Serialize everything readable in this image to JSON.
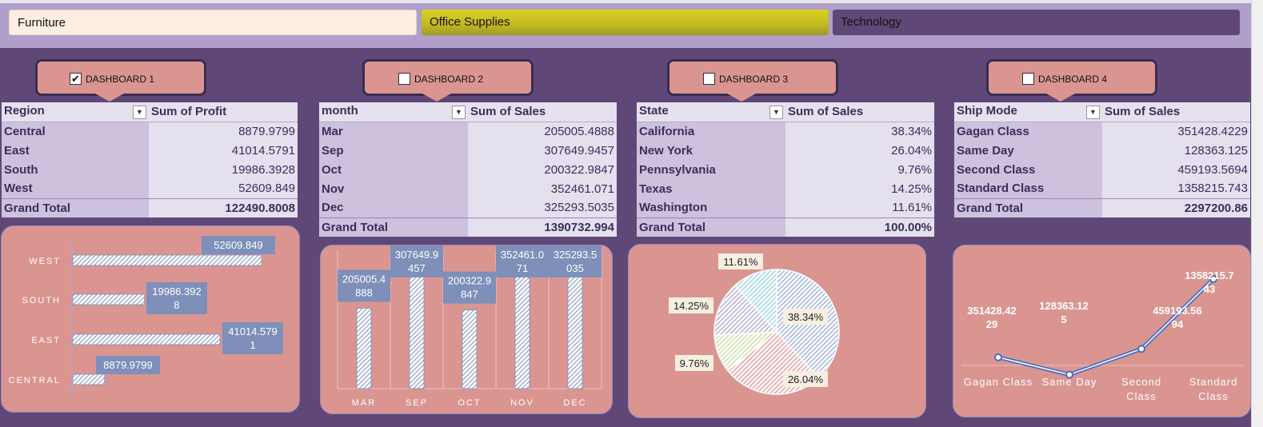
{
  "slicers": [
    {
      "label": "Furniture"
    },
    {
      "label": "Office Supplies"
    },
    {
      "label": "Technology"
    }
  ],
  "dashboards": [
    {
      "label": "DASHBOARD 1",
      "checked": true
    },
    {
      "label": "DASHBOARD 2",
      "checked": false
    },
    {
      "label": "DASHBOARD 3",
      "checked": false
    },
    {
      "label": "DASHBOARD 4",
      "checked": false
    }
  ],
  "pivots": [
    {
      "headers": [
        "Region",
        "Sum of Profit"
      ],
      "filter_active": false,
      "rows": [
        [
          "Central",
          "8879.9799"
        ],
        [
          "East",
          "41014.5791"
        ],
        [
          "South",
          "19986.3928"
        ],
        [
          "West",
          "52609.849"
        ]
      ],
      "total": [
        "Grand Total",
        "122490.8008"
      ]
    },
    {
      "headers": [
        "month",
        "Sum of Sales"
      ],
      "filter_active": true,
      "rows": [
        [
          "Mar",
          "205005.4888"
        ],
        [
          "Sep",
          "307649.9457"
        ],
        [
          "Oct",
          "200322.9847"
        ],
        [
          "Nov",
          "352461.071"
        ],
        [
          "Dec",
          "325293.5035"
        ]
      ],
      "total": [
        "Grand Total",
        "1390732.994"
      ]
    },
    {
      "headers": [
        "State",
        "Sum of Sales"
      ],
      "filter_active": true,
      "rows": [
        [
          "California",
          "38.34%"
        ],
        [
          "New York",
          "26.04%"
        ],
        [
          "Pennsylvania",
          "9.76%"
        ],
        [
          "Texas",
          "14.25%"
        ],
        [
          "Washington",
          "11.61%"
        ]
      ],
      "total": [
        "Grand Total",
        "100.00%"
      ]
    },
    {
      "headers": [
        "Ship Mode",
        "Sum of Sales"
      ],
      "filter_active": false,
      "rows": [
        [
          "Gagan Class",
          "351428.4229"
        ],
        [
          "Same Day",
          "128363.125"
        ],
        [
          "Second Class",
          "459193.5694"
        ],
        [
          "Standard Class",
          "1358215.743"
        ]
      ],
      "total": [
        "Grand Total",
        "2297200.86"
      ]
    }
  ],
  "chart_data": [
    {
      "type": "bar",
      "orientation": "horizontal",
      "categories": [
        "WEST",
        "SOUTH",
        "EAST",
        "CENTRAL"
      ],
      "values": [
        52609.849,
        19986.3928,
        41014.5791,
        8879.9799
      ],
      "data_labels": [
        [
          "52609.849"
        ],
        [
          "19986.392",
          "8"
        ],
        [
          "41014.579",
          "1"
        ],
        [
          "8879.9799"
        ]
      ],
      "color": "#7e8fb9"
    },
    {
      "type": "bar",
      "categories": [
        "MAR",
        "SEP",
        "OCT",
        "NOV",
        "DEC"
      ],
      "values": [
        205005.4888,
        307649.9457,
        200322.9847,
        352461.071,
        325293.5035
      ],
      "data_labels": [
        [
          "205005.4",
          "888"
        ],
        [
          "307649.9",
          "457"
        ],
        [
          "200322.9",
          "847"
        ],
        [
          "352461.0",
          "71"
        ],
        [
          "325293.5",
          "035"
        ]
      ],
      "color": "#7e8fb9"
    },
    {
      "type": "pie",
      "categories": [
        "California",
        "New York",
        "Pennsylvania",
        "Texas",
        "Washington"
      ],
      "values": [
        38.34,
        26.04,
        9.76,
        14.25,
        11.61
      ],
      "data_labels": [
        "38.34%",
        "26.04%",
        "9.76%",
        "14.25%",
        "11.61%"
      ],
      "colors": [
        "#8ea3d8",
        "#e28a8c",
        "#bfd99a",
        "#a99ac9",
        "#87cfe0"
      ]
    },
    {
      "type": "line",
      "categories": [
        [
          "Gagan Class"
        ],
        [
          "Same Day"
        ],
        [
          "Second",
          "Class"
        ],
        [
          "Standard",
          "Class"
        ]
      ],
      "values": [
        351428.4229,
        128363.125,
        459193.5694,
        1358215.743
      ],
      "data_labels": [
        [
          "351428.42",
          "29"
        ],
        [
          "128363.12",
          "5"
        ],
        [
          "459193.56",
          "94"
        ],
        [
          "1358215.7",
          "43"
        ]
      ],
      "color": "#4a6fbd"
    }
  ]
}
